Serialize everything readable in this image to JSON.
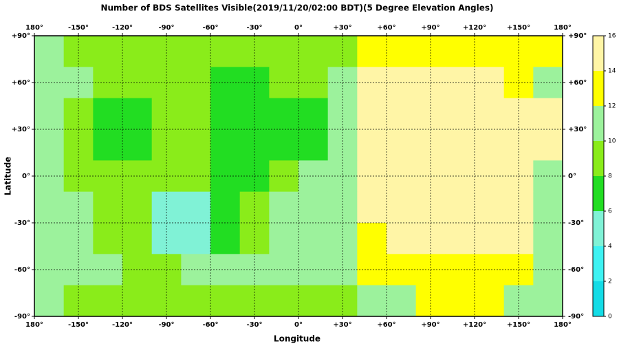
{
  "chart_data": {
    "type": "heatmap",
    "title": "Number of BDS Satellites Visible(2019/11/20/02:00 BDT)(5 Degree Elevation Angles)",
    "xlabel": "Longitude",
    "ylabel": "Latitude",
    "xlim": [
      -180,
      180
    ],
    "ylim": [
      -90,
      90
    ],
    "xticks": [
      {
        "value": -180,
        "label": "180°"
      },
      {
        "value": -150,
        "label": "-150°"
      },
      {
        "value": -120,
        "label": "-120°"
      },
      {
        "value": -90,
        "label": "-90°"
      },
      {
        "value": -60,
        "label": "-60°"
      },
      {
        "value": -30,
        "label": "-30°"
      },
      {
        "value": 0,
        "label": "0°"
      },
      {
        "value": 30,
        "label": "+30°"
      },
      {
        "value": 60,
        "label": "+60°"
      },
      {
        "value": 90,
        "label": "+90°"
      },
      {
        "value": 120,
        "label": "+120°"
      },
      {
        "value": 150,
        "label": "+150°"
      },
      {
        "value": 180,
        "label": "180°"
      }
    ],
    "yticks": [
      {
        "value": 90,
        "label": "+90°"
      },
      {
        "value": 60,
        "label": "+60°"
      },
      {
        "value": 30,
        "label": "+30°"
      },
      {
        "value": 0,
        "label": "0°"
      },
      {
        "value": -30,
        "label": "-30°"
      },
      {
        "value": -60,
        "label": "-60°"
      },
      {
        "value": -90,
        "label": "-90°"
      }
    ],
    "grid": true,
    "x": [
      -170,
      -150,
      -130,
      -110,
      -90,
      -70,
      -50,
      -30,
      -10,
      10,
      30,
      50,
      70,
      90,
      110,
      130,
      150,
      170
    ],
    "y": [
      80,
      60,
      40,
      20,
      0,
      -20,
      -40,
      -60,
      -80
    ],
    "values": [
      [
        11,
        9,
        9,
        9,
        9,
        9,
        9,
        9,
        9,
        9,
        9,
        13,
        13,
        13,
        13,
        13,
        13,
        13
      ],
      [
        11,
        11,
        9,
        9,
        9,
        9,
        7,
        7,
        9,
        9,
        11,
        15,
        15,
        15,
        15,
        15,
        13,
        11
      ],
      [
        11,
        9,
        7,
        7,
        9,
        9,
        7,
        7,
        7,
        7,
        11,
        15,
        15,
        15,
        15,
        15,
        15,
        15
      ],
      [
        11,
        9,
        7,
        7,
        9,
        9,
        7,
        7,
        7,
        7,
        11,
        15,
        15,
        15,
        15,
        15,
        15,
        15
      ],
      [
        11,
        9,
        9,
        9,
        9,
        9,
        7,
        7,
        9,
        11,
        11,
        15,
        15,
        15,
        15,
        15,
        15,
        11
      ],
      [
        11,
        11,
        9,
        9,
        5,
        5,
        7,
        9,
        11,
        11,
        11,
        15,
        15,
        15,
        15,
        15,
        15,
        11
      ],
      [
        11,
        11,
        9,
        9,
        5,
        5,
        7,
        9,
        11,
        11,
        11,
        13,
        15,
        15,
        15,
        15,
        15,
        11
      ],
      [
        11,
        11,
        11,
        9,
        9,
        11,
        11,
        11,
        11,
        11,
        11,
        13,
        13,
        13,
        13,
        13,
        13,
        11
      ],
      [
        11,
        9,
        9,
        9,
        9,
        9,
        9,
        9,
        9,
        9,
        9,
        11,
        11,
        13,
        13,
        13,
        11,
        11
      ]
    ],
    "colorbar": {
      "lim": [
        0,
        16
      ],
      "ticks": [
        0,
        2,
        4,
        6,
        8,
        10,
        12,
        14,
        16
      ],
      "colors": [
        "#14dce6",
        "#3ef2f2",
        "#80f2d6",
        "#22dd22",
        "#8aec1a",
        "#9cf29c",
        "#ffff00",
        "#fff5a6"
      ]
    }
  }
}
